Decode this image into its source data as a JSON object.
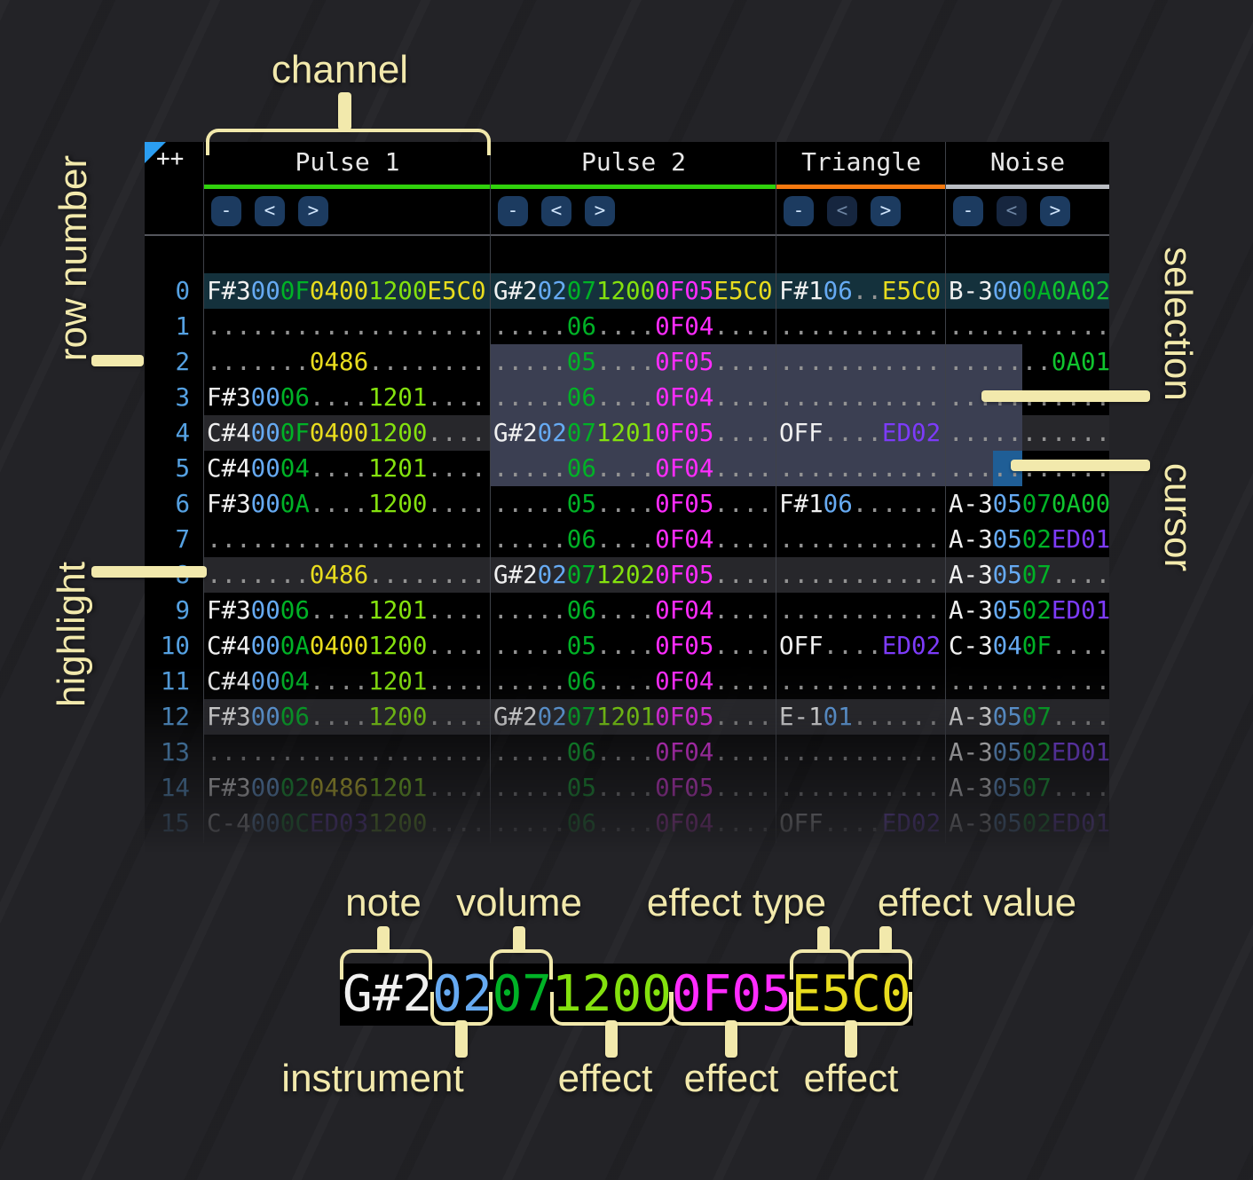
{
  "colors": {
    "cream": "#f2e9ac",
    "note": "#f0f0f0",
    "ins": "#66aaf2",
    "vol": "#00b226",
    "empty_dots": "#939393",
    "row_number": "#55a1e2",
    "fx": {
      "12": "#84e10e",
      "0F": "#ff2cff",
      "E5": "#e8dc1e",
      "04": "#e8dc1e",
      "ED": "#7d3bfa",
      "0A": "#10c42e"
    },
    "playhead_bg": "#14313c",
    "selection_bg": "#3b3f52",
    "cursor_bg": "#1f5e96",
    "highlight_bg": "#27272b",
    "underline": {
      "pulse": "#30d20c",
      "triangle": "#f5790f",
      "noise": "#babdc3"
    },
    "button_bg": "#1c3b60",
    "button_bg_dim": "#16263f",
    "panel_bg": "#000000"
  },
  "header": {
    "corner_label": "++",
    "channels": [
      {
        "name": "Pulse 1",
        "underline": "pulse",
        "buttons": [
          {
            "label": "-",
            "dim": false
          },
          {
            "label": "<",
            "dim": false
          },
          {
            "label": ">",
            "dim": false
          }
        ]
      },
      {
        "name": "Pulse 2",
        "underline": "pulse",
        "buttons": [
          {
            "label": "-",
            "dim": false
          },
          {
            "label": "<",
            "dim": false
          },
          {
            "label": ">",
            "dim": false
          }
        ]
      },
      {
        "name": "Triangle",
        "underline": "triangle",
        "buttons": [
          {
            "label": "-",
            "dim": false
          },
          {
            "label": "<",
            "dim": true
          },
          {
            "label": ">",
            "dim": false
          }
        ]
      },
      {
        "name": "Noise",
        "underline": "noise",
        "buttons": [
          {
            "label": "-",
            "dim": false
          },
          {
            "label": "<",
            "dim": true
          },
          {
            "label": ">",
            "dim": false
          }
        ]
      }
    ]
  },
  "pattern": {
    "field_lengths_wide": [
      3,
      2,
      2,
      4,
      4,
      4
    ],
    "field_lengths_narrow": [
      3,
      2,
      2,
      4
    ],
    "playhead_row": 0,
    "highlight_rows": [
      4,
      8,
      12
    ],
    "selection": {
      "from_row": 2,
      "to_row": 5
    },
    "cursor": {
      "row": 5,
      "channel": "noi",
      "field": "instrument"
    },
    "rows": [
      {
        "n": "0",
        "p1": [
          "F#3",
          "00",
          "0F",
          "0400",
          "1200",
          "E5C0"
        ],
        "p2": [
          "G#2",
          "02",
          "07",
          "1200",
          "0F05",
          "E5C0"
        ],
        "tri": [
          "F#1",
          "06",
          "",
          "E5C0"
        ],
        "noi": [
          "B-3",
          "00",
          "0A",
          "0A02"
        ]
      },
      {
        "n": "1",
        "p1": [
          "",
          "",
          "",
          "",
          "",
          ""
        ],
        "p2": [
          "",
          "",
          "06",
          "",
          "0F04",
          ""
        ],
        "tri": [
          "",
          "",
          "",
          ""
        ],
        "noi": [
          "",
          "",
          "",
          ""
        ]
      },
      {
        "n": "2",
        "p1": [
          "",
          "",
          "",
          "0486",
          "",
          ""
        ],
        "p2": [
          "",
          "",
          "05",
          "",
          "0F05",
          ""
        ],
        "tri": [
          "",
          "",
          "",
          ""
        ],
        "noi": [
          "",
          "",
          "",
          "0A01"
        ]
      },
      {
        "n": "3",
        "p1": [
          "F#3",
          "00",
          "06",
          "",
          "1201",
          ""
        ],
        "p2": [
          "",
          "",
          "06",
          "",
          "0F04",
          ""
        ],
        "tri": [
          "",
          "",
          "",
          ""
        ],
        "noi": [
          "",
          "",
          "",
          ""
        ]
      },
      {
        "n": "4",
        "p1": [
          "C#4",
          "00",
          "0F",
          "0400",
          "1200",
          ""
        ],
        "p2": [
          "G#2",
          "02",
          "07",
          "1201",
          "0F05",
          ""
        ],
        "tri": [
          "OFF",
          "",
          "",
          "ED02"
        ],
        "noi": [
          "",
          "",
          "",
          ""
        ]
      },
      {
        "n": "5",
        "p1": [
          "C#4",
          "00",
          "04",
          "",
          "1201",
          ""
        ],
        "p2": [
          "",
          "",
          "06",
          "",
          "0F04",
          ""
        ],
        "tri": [
          "",
          "",
          "",
          ""
        ],
        "noi": [
          "",
          "",
          "",
          ""
        ]
      },
      {
        "n": "6",
        "p1": [
          "F#3",
          "00",
          "0A",
          "",
          "1200",
          ""
        ],
        "p2": [
          "",
          "",
          "05",
          "",
          "0F05",
          ""
        ],
        "tri": [
          "F#1",
          "06",
          "",
          ""
        ],
        "noi": [
          "A-3",
          "05",
          "07",
          "0A00"
        ]
      },
      {
        "n": "7",
        "p1": [
          "",
          "",
          "",
          "",
          "",
          ""
        ],
        "p2": [
          "",
          "",
          "06",
          "",
          "0F04",
          ""
        ],
        "tri": [
          "",
          "",
          "",
          ""
        ],
        "noi": [
          "A-3",
          "05",
          "02",
          "ED01"
        ]
      },
      {
        "n": "8",
        "p1": [
          "",
          "",
          "",
          "0486",
          "",
          ""
        ],
        "p2": [
          "G#2",
          "02",
          "07",
          "1202",
          "0F05",
          ""
        ],
        "tri": [
          "",
          "",
          "",
          ""
        ],
        "noi": [
          "A-3",
          "05",
          "07",
          ""
        ]
      },
      {
        "n": "9",
        "p1": [
          "F#3",
          "00",
          "06",
          "",
          "1201",
          ""
        ],
        "p2": [
          "",
          "",
          "06",
          "",
          "0F04",
          ""
        ],
        "tri": [
          "",
          "",
          "",
          ""
        ],
        "noi": [
          "A-3",
          "05",
          "02",
          "ED01"
        ]
      },
      {
        "n": "10",
        "p1": [
          "C#4",
          "00",
          "0A",
          "0400",
          "1200",
          ""
        ],
        "p2": [
          "",
          "",
          "05",
          "",
          "0F05",
          ""
        ],
        "tri": [
          "OFF",
          "",
          "",
          "ED02"
        ],
        "noi": [
          "C-3",
          "04",
          "0F",
          ""
        ]
      },
      {
        "n": "11",
        "p1": [
          "C#4",
          "00",
          "04",
          "",
          "1201",
          ""
        ],
        "p2": [
          "",
          "",
          "06",
          "",
          "0F04",
          ""
        ],
        "tri": [
          "",
          "",
          "",
          ""
        ],
        "noi": [
          "",
          "",
          "",
          ""
        ]
      },
      {
        "n": "12",
        "p1": [
          "F#3",
          "00",
          "06",
          "",
          "1200",
          ""
        ],
        "p2": [
          "G#2",
          "02",
          "07",
          "1201",
          "0F05",
          ""
        ],
        "tri": [
          "E-1",
          "01",
          "",
          ""
        ],
        "noi": [
          "A-3",
          "05",
          "07",
          ""
        ]
      },
      {
        "n": "13",
        "p1": [
          "",
          "",
          "",
          "",
          "",
          ""
        ],
        "p2": [
          "",
          "",
          "06",
          "",
          "0F04",
          ""
        ],
        "tri": [
          "",
          "",
          "",
          ""
        ],
        "noi": [
          "A-3",
          "05",
          "02",
          "ED01"
        ]
      },
      {
        "n": "14",
        "p1": [
          "F#3",
          "00",
          "02",
          "0486",
          "1201",
          ""
        ],
        "p2": [
          "",
          "",
          "05",
          "",
          "0F05",
          ""
        ],
        "tri": [
          "",
          "",
          "",
          ""
        ],
        "noi": [
          "A-3",
          "05",
          "07",
          ""
        ]
      },
      {
        "n": "15",
        "p1": [
          "C-4",
          "00",
          "0C",
          "ED03",
          "1200",
          ""
        ],
        "p2": [
          "",
          "",
          "06",
          "",
          "0F04",
          ""
        ],
        "tri": [
          "OFF",
          "",
          "",
          "ED02"
        ],
        "noi": [
          "A-3",
          "05",
          "02",
          "ED01"
        ]
      }
    ]
  },
  "annotations": {
    "channel": "channel",
    "row_number": "row number",
    "highlight": "highlight",
    "selection": "selection",
    "cursor": "cursor"
  },
  "legend": {
    "top_labels": [
      "note",
      "volume",
      "effect type",
      "effect value"
    ],
    "bottom_labels": [
      "instrument",
      "effect",
      "effect",
      "effect"
    ],
    "example": [
      {
        "t": "G#2",
        "c": "note"
      },
      {
        "t": "02",
        "c": "ins"
      },
      {
        "t": "07",
        "c": "vol"
      },
      {
        "t": "1200",
        "c": "12"
      },
      {
        "t": "0F05",
        "c": "0F"
      },
      {
        "t": "E5C0",
        "c": "E5"
      }
    ]
  }
}
